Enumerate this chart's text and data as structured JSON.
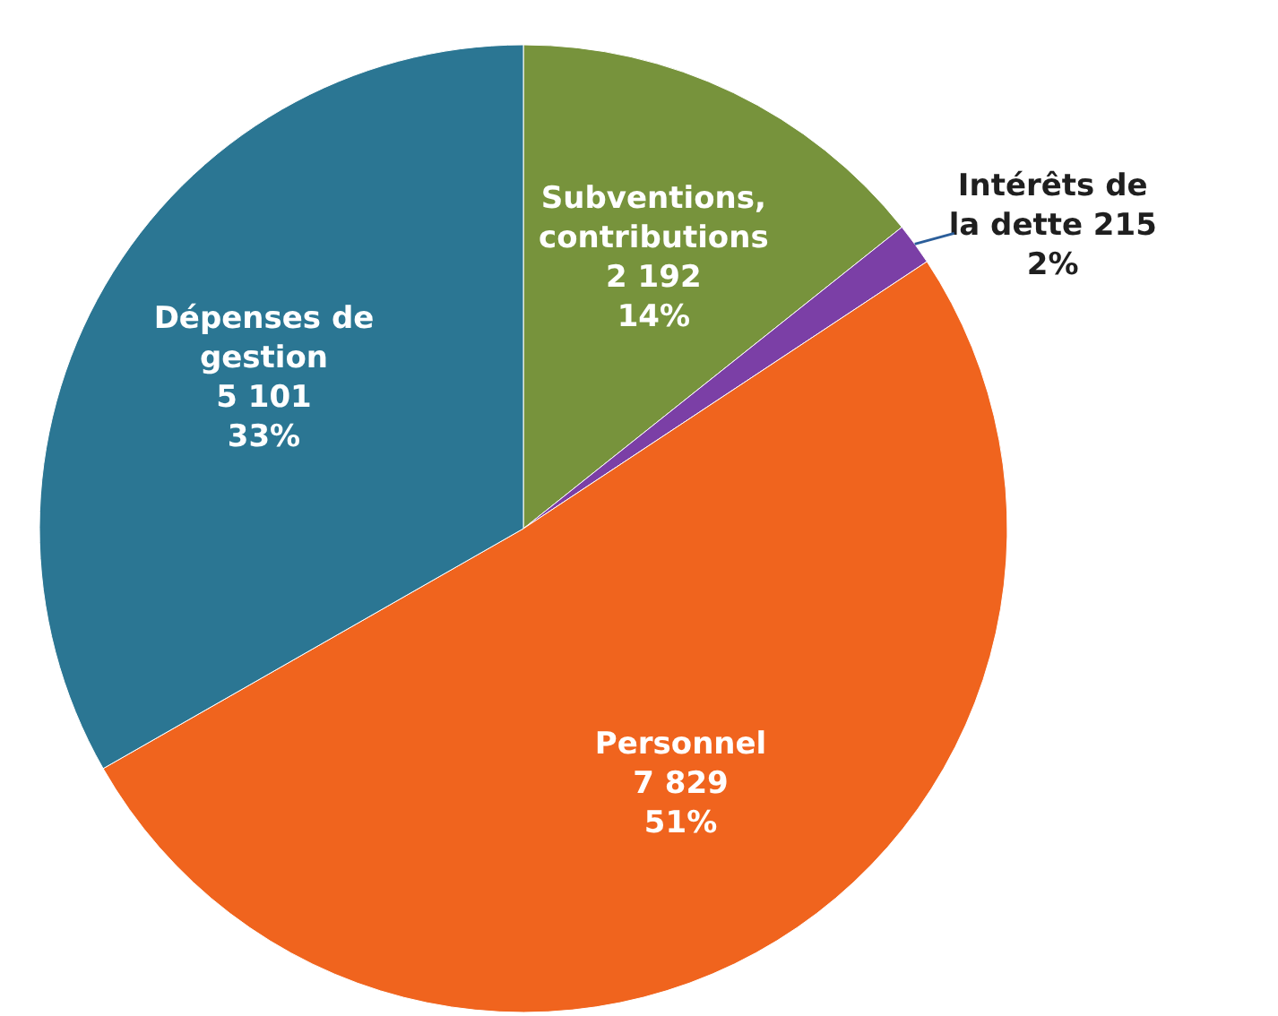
{
  "chart_data": {
    "type": "pie",
    "categories": [
      "Subventions, contributions",
      "Intérêts de la dette",
      "Personnel",
      "Dépenses de gestion"
    ],
    "values": [
      2192,
      215,
      7829,
      5101
    ],
    "value_labels": [
      "2 192\n14%",
      "215\n2%",
      "7 829\n51%",
      "5 101\n33%"
    ],
    "colors": [
      "#77933c",
      "#7b3fa6",
      "#f0641e",
      "#2b7693"
    ]
  }
}
